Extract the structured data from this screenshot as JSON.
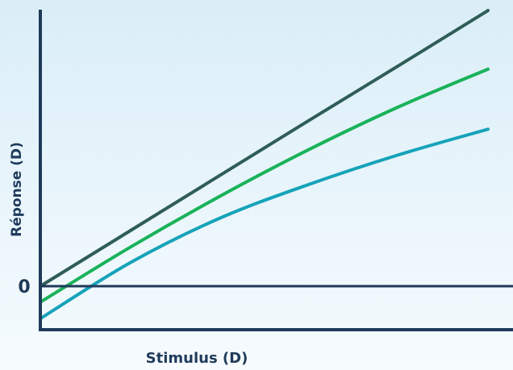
{
  "chart_data": {
    "type": "line",
    "title": "",
    "xlabel": "Stimulus (D)",
    "ylabel": "Réponse (D)",
    "y_tick_labels": [
      "0"
    ],
    "xlim": [
      0,
      10
    ],
    "ylim": [
      -1,
      6
    ],
    "series": [
      {
        "color": "#2f5d57",
        "x": [
          0,
          2,
          4,
          6,
          8,
          10
        ],
        "y": [
          0,
          1.14,
          2.28,
          3.42,
          4.55,
          5.69
        ]
      },
      {
        "color": "#19b25a",
        "x": [
          0,
          2,
          4,
          6,
          8,
          10
        ],
        "y": [
          -0.33,
          0.8,
          1.85,
          2.82,
          3.7,
          4.48
        ]
      },
      {
        "color": "#16a3b9",
        "x": [
          0,
          2,
          4,
          6,
          8,
          10
        ],
        "y": [
          -0.67,
          0.48,
          1.4,
          2.1,
          2.71,
          3.24
        ]
      }
    ],
    "grid": false,
    "legend": "none"
  },
  "colors": {
    "background_top": "#daeef8",
    "background_bottom": "#f6fbfe",
    "axis": "#1f3a5a"
  }
}
